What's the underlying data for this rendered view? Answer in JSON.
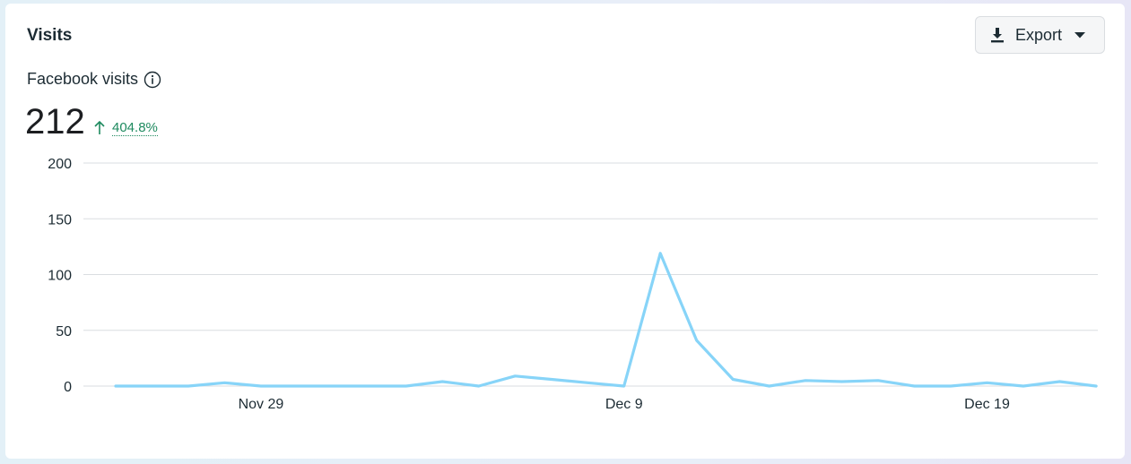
{
  "header": {
    "title": "Visits"
  },
  "toolbar": {
    "export_label": "Export"
  },
  "icons": {
    "export": "download-icon",
    "dropdown": "caret-down-icon",
    "info": "info-icon",
    "trend": "arrow-up-icon"
  },
  "metric": {
    "label": "Facebook visits",
    "value": "212",
    "change": "404.8%"
  },
  "colors": {
    "line": "#87d4f8",
    "positive": "#1e8a5f",
    "grid": "#dadde1"
  },
  "chart_data": {
    "type": "line",
    "x_start": "Nov 25",
    "x_ticks": [
      {
        "label": "Nov 29",
        "index": 4
      },
      {
        "label": "Dec 9",
        "index": 14
      },
      {
        "label": "Dec 19",
        "index": 24
      }
    ],
    "values": [
      0,
      0,
      0,
      3,
      0,
      0,
      0,
      0,
      0,
      4,
      0,
      9,
      6,
      3,
      0,
      119,
      41,
      6,
      0,
      5,
      4,
      5,
      0,
      0,
      3,
      0,
      4,
      0
    ],
    "ylim": [
      0,
      200
    ],
    "yticks": [
      0,
      50,
      100,
      150,
      200
    ],
    "grid": true,
    "xlabel": "",
    "ylabel": ""
  }
}
